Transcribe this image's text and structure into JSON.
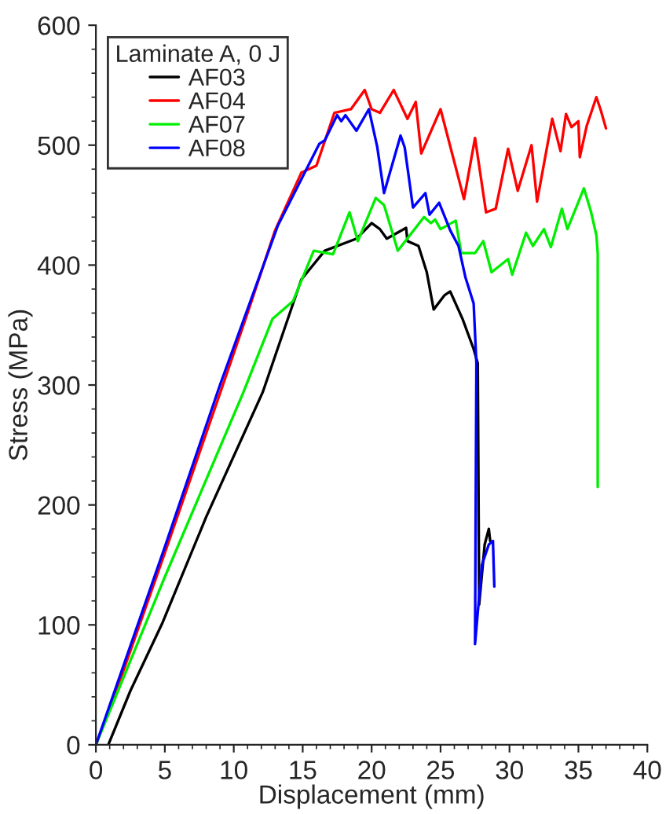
{
  "chart_data": {
    "type": "line",
    "xlabel": "Displacement (mm)",
    "ylabel": "Stress (MPa)",
    "legend_title": "Laminate A, 0 J",
    "legend": "top left",
    "grid": false,
    "marker": "none",
    "line_style": "solid",
    "xlim": [
      0,
      40
    ],
    "xticks": [
      0,
      5,
      10,
      15,
      20,
      25,
      30,
      35,
      40
    ],
    "ylim": [
      0,
      600
    ],
    "yticks": [
      0,
      100,
      200,
      300,
      400,
      500,
      600
    ],
    "series": [
      {
        "name": "AF03",
        "color": "#000000",
        "x": [
          0.9,
          2.5,
          4.8,
          8,
          12.1,
          14.9,
          16.6,
          18.9,
          20.0,
          20.6,
          21.1,
          22.5,
          22.6,
          23.4,
          24.0,
          24.5,
          25.3,
          25.7,
          26.6,
          27.4,
          27.7,
          27.8,
          28.2,
          28.5,
          28.6
        ],
        "values": [
          0,
          45,
          101,
          190,
          294,
          388,
          412,
          422,
          435,
          430,
          422,
          431,
          420,
          416,
          394,
          363,
          375,
          378,
          355,
          330,
          318,
          117,
          167,
          180,
          170
        ]
      },
      {
        "name": "AF04",
        "color": "#ff0000",
        "x": [
          0,
          2,
          5,
          9,
          11,
          13,
          14.9,
          16,
          17.3,
          18.5,
          19.5,
          20,
          20.6,
          21.6,
          22.6,
          23.2,
          23.6,
          25.0,
          26.7,
          27.5,
          28.3,
          29,
          29.9,
          30.6,
          31.6,
          32,
          33.1,
          33.7,
          34.1,
          34.5,
          35,
          35.1,
          35.6,
          36.3,
          36.6,
          37
        ],
        "values": [
          0,
          62,
          160,
          293,
          360,
          429,
          477,
          483,
          527,
          530,
          546,
          530,
          527,
          546,
          522,
          536,
          493,
          530,
          455,
          506,
          444,
          447,
          497,
          462,
          500,
          453,
          522,
          495,
          526,
          515,
          520,
          490,
          516,
          540,
          530,
          514
        ]
      },
      {
        "name": "AF07",
        "color": "#00ee00",
        "x": [
          0,
          5,
          10.7,
          12.8,
          14.3,
          15.8,
          17.2,
          18.4,
          19.0,
          20.3,
          20.9,
          21.9,
          23.8,
          24.3,
          24.6,
          25.0,
          26.1,
          26.5,
          27.5,
          28.1,
          28.7,
          29.9,
          30.2,
          31.2,
          31.7,
          32.5,
          33.0,
          33.8,
          34.2,
          35.4,
          35.9,
          36.3,
          36.4,
          36.4
        ],
        "values": [
          0,
          140,
          294,
          355,
          370,
          412,
          409,
          444,
          420,
          456,
          450,
          412,
          440,
          435,
          438,
          430,
          437,
          410,
          410,
          420,
          394,
          405,
          392,
          427,
          416,
          430,
          415,
          447,
          430,
          464,
          445,
          425,
          410,
          215
        ]
      },
      {
        "name": "AF08",
        "color": "#0000ff",
        "x": [
          0,
          5,
          9,
          13.2,
          16.2,
          16.6,
          17.5,
          17.8,
          18.1,
          18.9,
          19.8,
          20.4,
          20.9,
          22.1,
          22.4,
          23.0,
          23.9,
          24.2,
          24.9,
          25.7,
          26.3,
          26.8,
          27.4,
          27.6,
          27.5,
          28.0,
          28.5,
          28.8,
          28.9
        ],
        "values": [
          0,
          165,
          300,
          433,
          501,
          504,
          525,
          520,
          525,
          512,
          530,
          499,
          460,
          508,
          498,
          448,
          460,
          442,
          452,
          429,
          416,
          390,
          368,
          318,
          84,
          150,
          167,
          170,
          132
        ]
      }
    ]
  }
}
